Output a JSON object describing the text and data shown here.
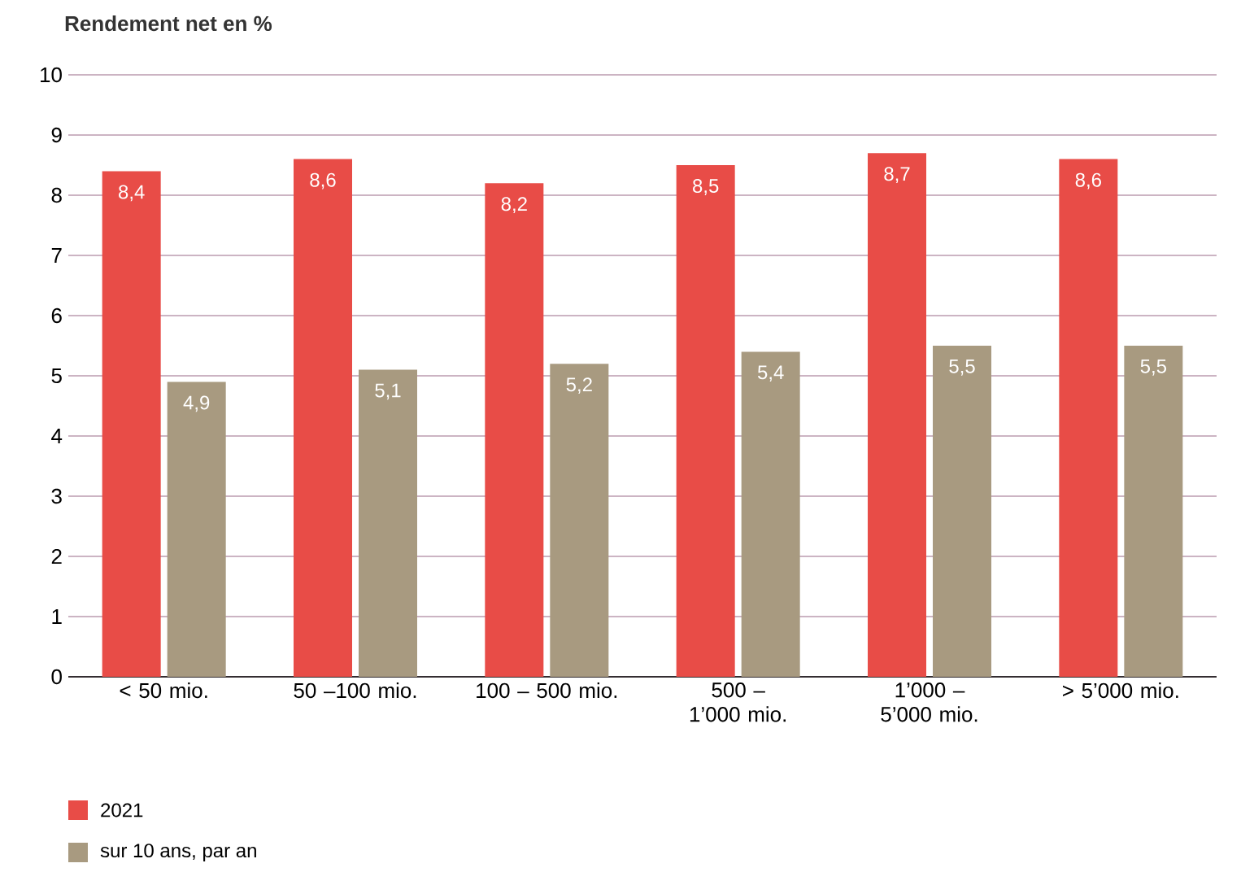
{
  "chart_data": {
    "type": "bar",
    "ylabel": "Rendement net en %",
    "categories": [
      "< 50 mio.",
      "50 –100 mio.",
      "100 – 500 mio.",
      "500 –1’000 mio.",
      "1’000 – 5’000 mio.",
      "> 5’000 mio."
    ],
    "series": [
      {
        "name": "2021",
        "color": "#e84c47",
        "values": [
          8.4,
          8.6,
          8.2,
          8.5,
          8.7,
          8.6
        ],
        "value_labels": [
          "8,4",
          "8,6",
          "8,2",
          "8,5",
          "8,7",
          "8,6"
        ]
      },
      {
        "name": "sur 10 ans, par an",
        "color": "#a89a80",
        "values": [
          4.9,
          5.1,
          5.2,
          5.4,
          5.5,
          5.5
        ],
        "value_labels": [
          "4,9",
          "5,1",
          "5,2",
          "5,4",
          "5,5",
          "5,5"
        ]
      }
    ],
    "ylim": [
      0,
      10
    ],
    "yticks": [
      0,
      1,
      2,
      3,
      4,
      5,
      6,
      7,
      8,
      9,
      10
    ],
    "grid": "y",
    "legend": "bottom left"
  }
}
